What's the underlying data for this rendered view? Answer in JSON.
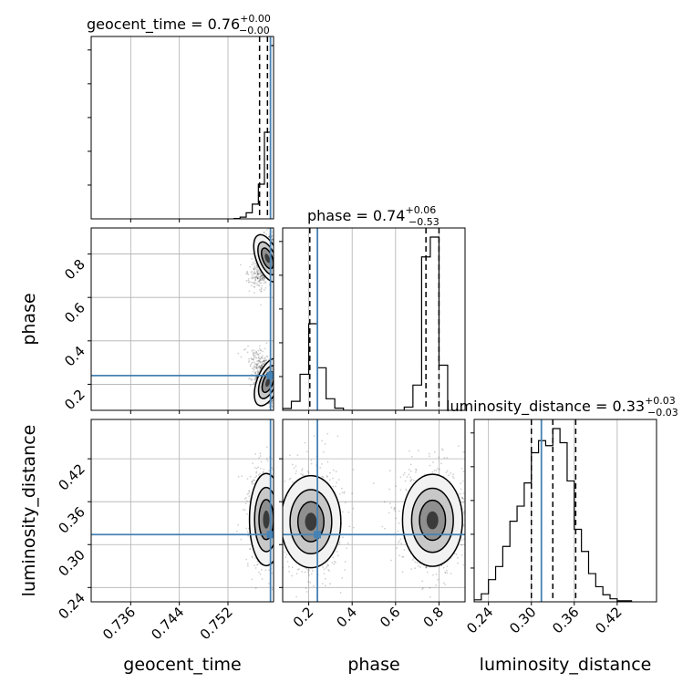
{
  "chart_data": {
    "type": "corner",
    "parameters": [
      "geocent_time",
      "phase",
      "luminosity_distance"
    ],
    "truth_color": "#4682b4",
    "grid": true,
    "titles": [
      {
        "param": "geocent_time",
        "label": "geocent_time = 0.76",
        "sup": "+0.00",
        "sub": "−0.00"
      },
      {
        "param": "phase",
        "label": "phase = 0.74",
        "sup": "+0.06",
        "sub": "−0.53"
      },
      {
        "param": "luminosity_distance",
        "label": "luminosity_distance = 0.33",
        "sup": "+0.03",
        "sub": "−0.03"
      }
    ],
    "axes": {
      "geocent_time": {
        "range": [
          0.7295,
          0.7595
        ],
        "ticks": [
          0.736,
          0.744,
          0.752
        ],
        "tick_labels": [
          "0.736",
          "0.744",
          "0.752"
        ],
        "truth": 0.759,
        "quantiles": [
          0.7572,
          0.7585,
          0.759
        ]
      },
      "phase": {
        "range": [
          0.08,
          0.92
        ],
        "ticks": [
          0.2,
          0.4,
          0.6,
          0.8
        ],
        "tick_labels": [
          "0.2",
          "0.4",
          "0.6",
          "0.8"
        ],
        "truth": 0.24,
        "quantiles": [
          0.205,
          0.74,
          0.8
        ]
      },
      "luminosity_distance": {
        "range": [
          0.22,
          0.475
        ],
        "ticks": [
          0.24,
          0.3,
          0.36,
          0.42
        ],
        "tick_labels": [
          "0.24",
          "0.30",
          "0.36",
          "0.42"
        ],
        "truth": 0.314,
        "quantiles": [
          0.3,
          0.33,
          0.362
        ]
      }
    },
    "histograms": {
      "geocent_time": {
        "bin_edges": [
          0.753,
          0.754,
          0.755,
          0.756,
          0.757,
          0.758,
          0.759,
          0.76
        ],
        "counts": [
          2,
          10,
          35,
          85,
          200,
          500,
          1000
        ]
      },
      "phase": {
        "bin_edges": [
          0.08,
          0.12,
          0.16,
          0.2,
          0.24,
          0.28,
          0.32,
          0.36,
          0.4,
          0.44,
          0.48,
          0.52,
          0.56,
          0.6,
          0.64,
          0.68,
          0.72,
          0.76,
          0.8,
          0.84
        ],
        "counts": [
          5,
          25,
          100,
          240,
          118,
          32,
          6,
          0,
          0,
          0,
          0,
          0,
          0,
          0,
          9,
          70,
          425,
          480,
          125
        ]
      },
      "luminosity_distance": {
        "bin_edges": [
          0.22,
          0.23,
          0.24,
          0.25,
          0.26,
          0.27,
          0.28,
          0.29,
          0.3,
          0.31,
          0.32,
          0.33,
          0.34,
          0.35,
          0.36,
          0.37,
          0.38,
          0.39,
          0.4,
          0.41,
          0.42,
          0.43,
          0.44
        ],
        "counts": [
          2,
          8,
          22,
          35,
          55,
          80,
          95,
          118,
          148,
          160,
          155,
          172,
          158,
          120,
          72,
          50,
          28,
          15,
          7,
          3,
          1,
          1
        ]
      }
    },
    "clusters_2d": {
      "phase_vs_geocent_time": [
        {
          "x": 0.7585,
          "y": 0.78,
          "sx": 0.0008,
          "sy": 0.05,
          "tilt": -0.6
        },
        {
          "x": 0.7586,
          "y": 0.21,
          "sx": 0.0008,
          "sy": 0.05,
          "tilt": 0.6
        }
      ],
      "luminosity_distance_vs_geocent_time": [
        {
          "x": 0.7583,
          "y": 0.335,
          "sx": 0.0012,
          "sy": 0.028,
          "tilt": 0
        }
      ],
      "luminosity_distance_vs_phase": [
        {
          "x": 0.21,
          "y": 0.332,
          "sx": 0.06,
          "sy": 0.028,
          "tilt": 0
        },
        {
          "x": 0.77,
          "y": 0.334,
          "sx": 0.06,
          "sy": 0.028,
          "tilt": 0
        }
      ]
    }
  }
}
